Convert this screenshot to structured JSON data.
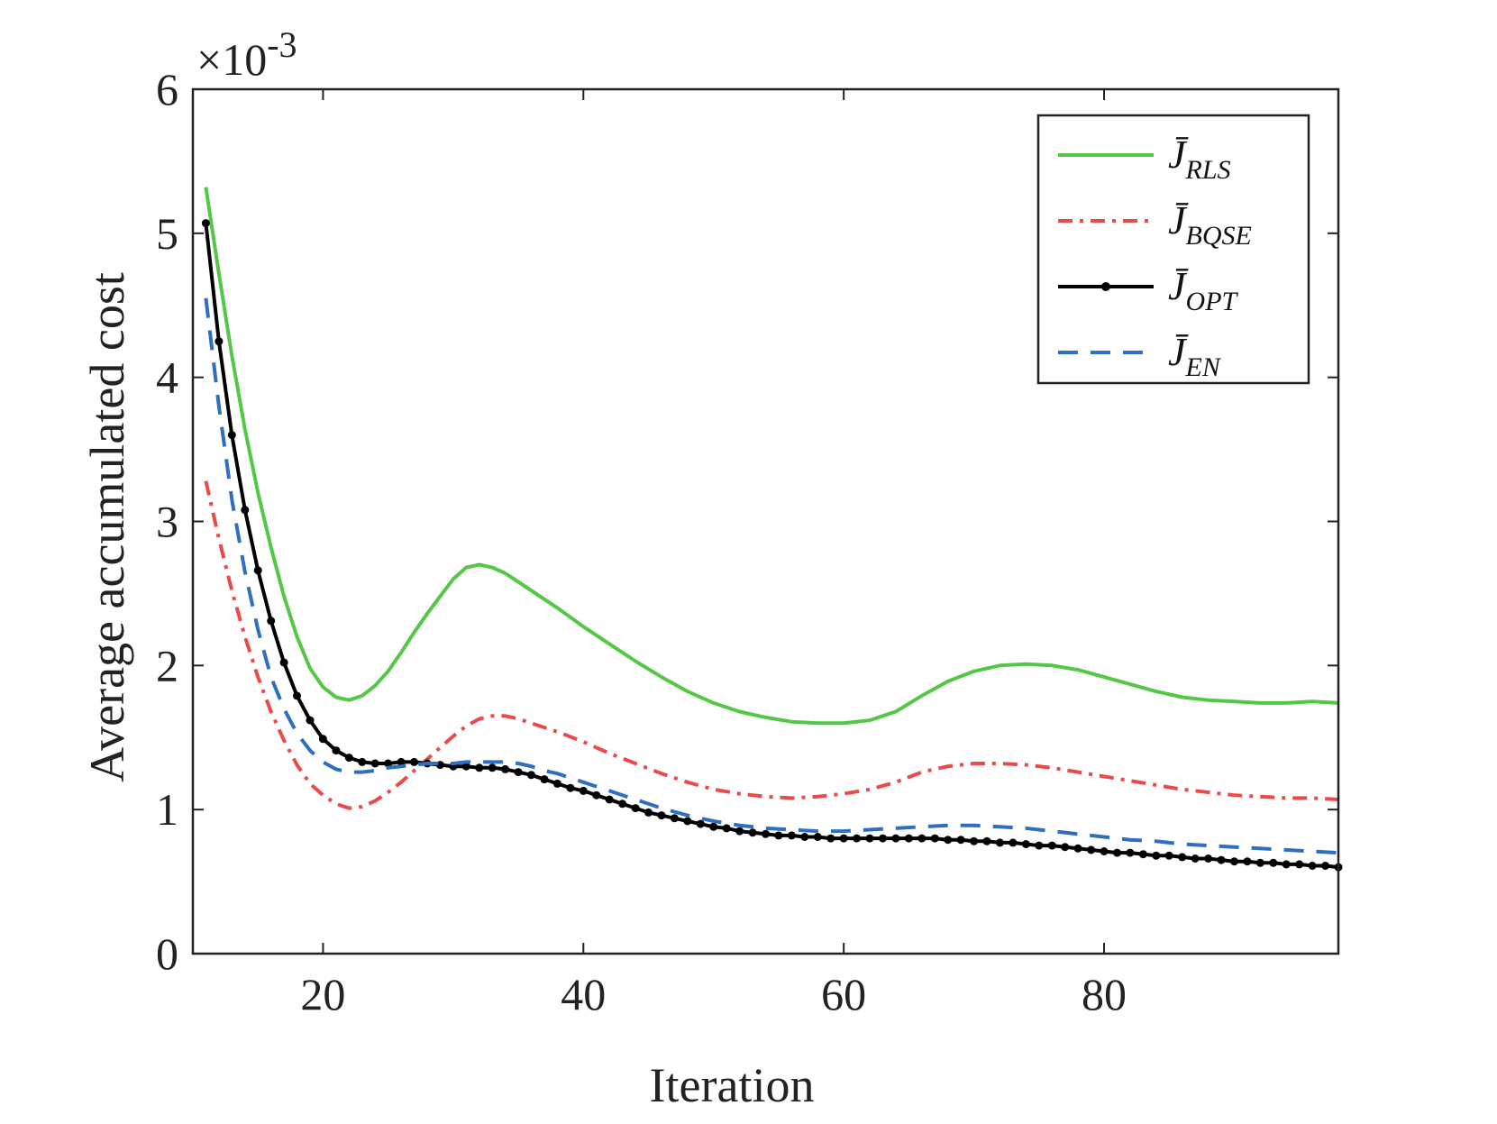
{
  "chart_data": {
    "type": "line",
    "title": "",
    "xlabel": "Iteration",
    "ylabel": "Average accumulated cost",
    "y_multiplier": "×10",
    "y_exponent": "-3",
    "xlim": [
      10,
      98
    ],
    "ylim": [
      0,
      6
    ],
    "xticks": [
      20,
      40,
      60,
      80
    ],
    "yticks": [
      0,
      1,
      2,
      3,
      4,
      5,
      6
    ],
    "grid": false,
    "legend_position": "top-right",
    "series": [
      {
        "name": "J̄RLS",
        "label_base": "J̄",
        "label_sub": "RLS",
        "color": "#54c846",
        "dash": "",
        "marker": false,
        "x": [
          11,
          12,
          13,
          14,
          15,
          16,
          17,
          18,
          19,
          20,
          21,
          22,
          23,
          24,
          25,
          26,
          27,
          28,
          29,
          30,
          31,
          32,
          33,
          34,
          35,
          36,
          37,
          38,
          40,
          42,
          44,
          46,
          48,
          50,
          52,
          54,
          56,
          58,
          60,
          62,
          64,
          66,
          68,
          70,
          72,
          74,
          76,
          78,
          80,
          82,
          84,
          86,
          88,
          90,
          92,
          94,
          96,
          98
        ],
        "y": [
          5.32,
          4.72,
          4.15,
          3.64,
          3.2,
          2.82,
          2.48,
          2.2,
          1.98,
          1.85,
          1.78,
          1.76,
          1.79,
          1.86,
          1.96,
          2.09,
          2.23,
          2.36,
          2.48,
          2.6,
          2.68,
          2.7,
          2.68,
          2.64,
          2.58,
          2.52,
          2.46,
          2.4,
          2.27,
          2.15,
          2.03,
          1.92,
          1.82,
          1.74,
          1.68,
          1.64,
          1.61,
          1.6,
          1.6,
          1.62,
          1.68,
          1.79,
          1.89,
          1.96,
          2.0,
          2.01,
          2.0,
          1.97,
          1.92,
          1.87,
          1.82,
          1.78,
          1.76,
          1.75,
          1.74,
          1.74,
          1.75,
          1.74
        ]
      },
      {
        "name": "J̄BQSE",
        "label_base": "J̄",
        "label_sub": "BQSE",
        "color": "#ec4a4a",
        "dash": "16 8 4 8",
        "marker": false,
        "x": [
          11,
          12,
          13,
          14,
          15,
          16,
          17,
          18,
          19,
          20,
          21,
          22,
          23,
          24,
          25,
          26,
          27,
          28,
          29,
          30,
          31,
          32,
          33,
          34,
          35,
          36,
          37,
          38,
          40,
          42,
          44,
          46,
          48,
          50,
          52,
          54,
          56,
          58,
          60,
          62,
          64,
          66,
          68,
          70,
          72,
          74,
          76,
          78,
          80,
          82,
          84,
          86,
          88,
          90,
          92,
          94,
          96,
          98
        ],
        "y": [
          3.28,
          2.88,
          2.52,
          2.2,
          1.92,
          1.68,
          1.48,
          1.31,
          1.18,
          1.1,
          1.04,
          1.01,
          1.02,
          1.06,
          1.12,
          1.19,
          1.27,
          1.35,
          1.43,
          1.51,
          1.58,
          1.63,
          1.65,
          1.65,
          1.63,
          1.6,
          1.57,
          1.54,
          1.47,
          1.39,
          1.32,
          1.25,
          1.19,
          1.14,
          1.11,
          1.09,
          1.08,
          1.09,
          1.11,
          1.14,
          1.19,
          1.26,
          1.3,
          1.32,
          1.32,
          1.31,
          1.29,
          1.26,
          1.23,
          1.2,
          1.17,
          1.14,
          1.12,
          1.1,
          1.09,
          1.08,
          1.08,
          1.07
        ]
      },
      {
        "name": "J̄OPT",
        "label_base": "J̄",
        "label_sub": "OPT",
        "color": "#000000",
        "dash": "",
        "marker": true,
        "x": [
          11,
          12,
          13,
          14,
          15,
          16,
          17,
          18,
          19,
          20,
          21,
          22,
          23,
          24,
          25,
          26,
          27,
          28,
          29,
          30,
          31,
          32,
          33,
          34,
          35,
          36,
          37,
          38,
          39,
          40,
          41,
          42,
          43,
          44,
          45,
          46,
          47,
          48,
          49,
          50,
          51,
          52,
          53,
          54,
          55,
          56,
          57,
          58,
          59,
          60,
          61,
          62,
          63,
          64,
          65,
          66,
          67,
          68,
          69,
          70,
          71,
          72,
          73,
          74,
          75,
          76,
          77,
          78,
          79,
          80,
          81,
          82,
          83,
          84,
          85,
          86,
          87,
          88,
          89,
          90,
          91,
          92,
          93,
          94,
          95,
          96,
          97,
          98
        ],
        "y": [
          5.07,
          4.25,
          3.6,
          3.08,
          2.66,
          2.31,
          2.02,
          1.79,
          1.62,
          1.49,
          1.41,
          1.36,
          1.33,
          1.32,
          1.32,
          1.33,
          1.33,
          1.32,
          1.31,
          1.3,
          1.3,
          1.29,
          1.29,
          1.28,
          1.26,
          1.24,
          1.21,
          1.18,
          1.15,
          1.13,
          1.1,
          1.07,
          1.04,
          1.01,
          0.98,
          0.96,
          0.94,
          0.92,
          0.9,
          0.88,
          0.87,
          0.85,
          0.84,
          0.83,
          0.82,
          0.82,
          0.81,
          0.81,
          0.8,
          0.8,
          0.8,
          0.8,
          0.8,
          0.8,
          0.8,
          0.8,
          0.8,
          0.79,
          0.79,
          0.78,
          0.78,
          0.77,
          0.77,
          0.76,
          0.75,
          0.75,
          0.74,
          0.73,
          0.72,
          0.71,
          0.7,
          0.7,
          0.69,
          0.68,
          0.68,
          0.67,
          0.66,
          0.66,
          0.65,
          0.64,
          0.64,
          0.63,
          0.63,
          0.62,
          0.62,
          0.61,
          0.61,
          0.6
        ]
      },
      {
        "name": "J̄EN",
        "label_base": "J̄",
        "label_sub": "EN",
        "color": "#2f6ec0",
        "dash": "22 14",
        "marker": false,
        "x": [
          11,
          12,
          13,
          14,
          15,
          16,
          17,
          18,
          19,
          20,
          21,
          22,
          23,
          24,
          25,
          26,
          27,
          28,
          29,
          30,
          31,
          32,
          33,
          34,
          35,
          36,
          37,
          38,
          40,
          42,
          44,
          46,
          48,
          50,
          52,
          54,
          56,
          58,
          60,
          62,
          64,
          66,
          68,
          70,
          72,
          74,
          76,
          78,
          80,
          82,
          84,
          86,
          88,
          90,
          92,
          94,
          96,
          98
        ],
        "y": [
          4.55,
          3.8,
          3.15,
          2.65,
          2.25,
          1.92,
          1.7,
          1.53,
          1.41,
          1.33,
          1.28,
          1.26,
          1.26,
          1.27,
          1.29,
          1.3,
          1.31,
          1.32,
          1.32,
          1.32,
          1.33,
          1.33,
          1.33,
          1.33,
          1.32,
          1.3,
          1.27,
          1.25,
          1.19,
          1.13,
          1.07,
          1.01,
          0.96,
          0.92,
          0.89,
          0.87,
          0.86,
          0.85,
          0.85,
          0.86,
          0.87,
          0.88,
          0.89,
          0.89,
          0.88,
          0.87,
          0.85,
          0.83,
          0.81,
          0.79,
          0.78,
          0.76,
          0.75,
          0.74,
          0.73,
          0.72,
          0.71,
          0.7
        ]
      }
    ]
  }
}
